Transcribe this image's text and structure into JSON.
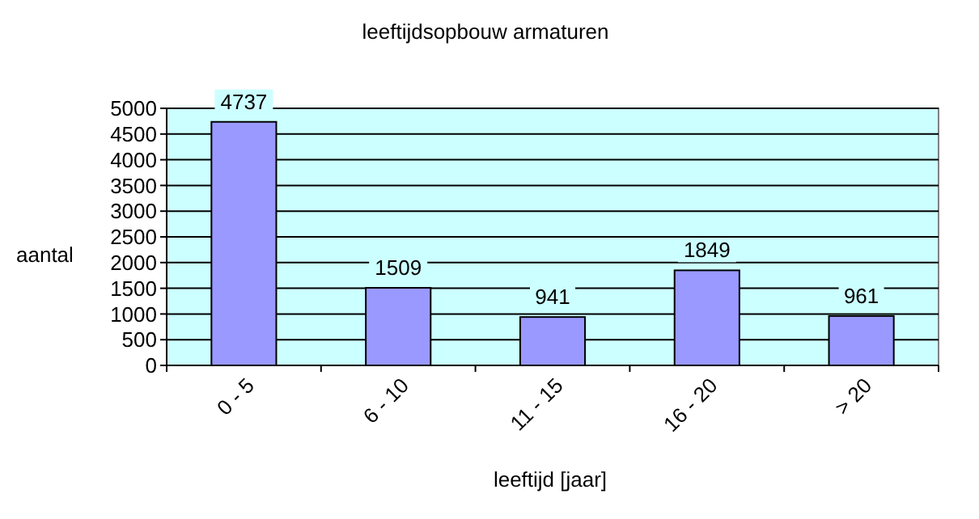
{
  "chart_data": {
    "type": "bar",
    "title": "leeftijdsopbouw  armaturen",
    "xlabel": "leeftijd [jaar]",
    "ylabel": "aantal",
    "categories": [
      "0 - 5",
      "6 - 10",
      "11 - 15",
      "16 - 20",
      "> 20"
    ],
    "values": [
      4737,
      1509,
      941,
      1849,
      961
    ],
    "color": "#9999ff",
    "ylim": [
      0,
      5000
    ],
    "yticks": [
      0,
      500,
      1000,
      1500,
      2000,
      2500,
      3000,
      3500,
      4000,
      4500,
      5000
    ],
    "grid": "y",
    "data_labels": true
  }
}
